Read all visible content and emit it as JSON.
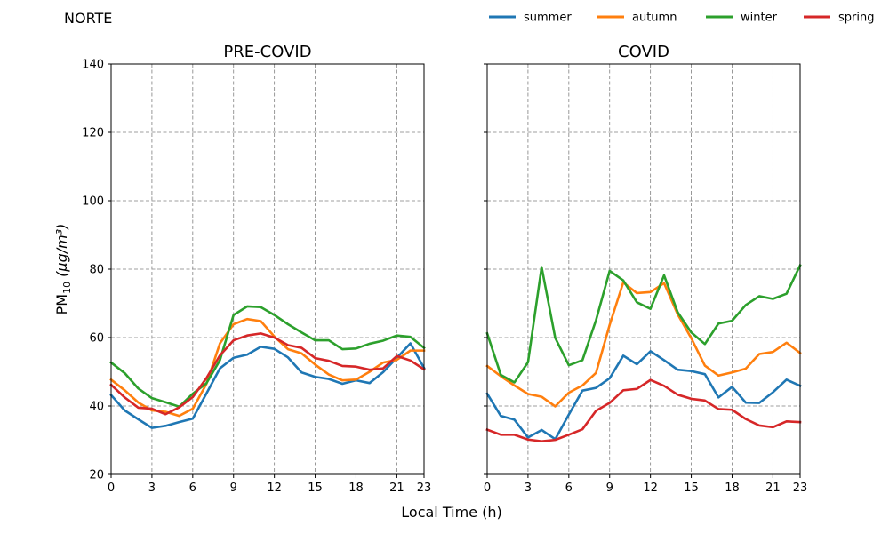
{
  "chart_data": {
    "type": "line",
    "region": "NORTE",
    "ylabel": "PM",
    "ylabel_sub": "10",
    "ylabel_unit": "(μg/m³)",
    "xlabel": "Local Time (h)",
    "ylim": [
      20,
      140
    ],
    "xlim": [
      0,
      23
    ],
    "xticks": [
      0,
      3,
      6,
      9,
      12,
      15,
      18,
      21,
      23
    ],
    "yticks": [
      20,
      40,
      60,
      80,
      100,
      120,
      140
    ],
    "grid": true,
    "legend_position": "top-right",
    "colors": {
      "summer": "#1f77b4",
      "autumn": "#ff7f0e",
      "winter": "#2ca02c",
      "spring": "#d62728"
    },
    "legend": [
      "summer",
      "autumn",
      "winter",
      "spring"
    ],
    "x": [
      0,
      1,
      2,
      3,
      4,
      5,
      6,
      7,
      8,
      9,
      10,
      11,
      12,
      13,
      14,
      15,
      16,
      17,
      18,
      19,
      20,
      21,
      22,
      23
    ],
    "panels": [
      {
        "title": "PRE-COVID",
        "series": [
          {
            "name": "summer",
            "values": [
              43.2,
              38.7,
              36.1,
              33.6,
              34.2,
              35.3,
              36.3,
              43.6,
              51.0,
              54.1,
              55.0,
              57.3,
              56.7,
              54.2,
              49.8,
              48.5,
              47.9,
              46.5,
              47.5,
              46.7,
              49.9,
              54.1,
              58.3,
              51.1
            ]
          },
          {
            "name": "autumn",
            "values": [
              47.7,
              44.6,
              41.0,
              38.7,
              38.3,
              37.1,
              39.2,
              46.4,
              58.3,
              63.9,
              65.4,
              64.8,
              60.3,
              56.6,
              55.4,
              52.1,
              49.2,
              47.5,
              47.7,
              50.0,
              52.7,
              53.5,
              56.2,
              56.2
            ]
          },
          {
            "name": "winter",
            "values": [
              52.7,
              49.6,
              45.1,
              42.3,
              41.1,
              39.8,
              43.6,
              46.6,
              53.4,
              66.6,
              69.1,
              68.9,
              66.6,
              63.9,
              61.5,
              59.2,
              59.2,
              56.6,
              56.8,
              58.2,
              59.1,
              60.6,
              60.2,
              57.0
            ]
          },
          {
            "name": "spring",
            "values": [
              46.2,
              42.5,
              39.5,
              39.2,
              37.6,
              39.6,
              42.6,
              48.1,
              54.8,
              59.2,
              60.6,
              61.2,
              60.0,
              57.8,
              57.0,
              54.0,
              53.2,
              51.7,
              51.5,
              50.6,
              51.0,
              54.6,
              53.3,
              50.7
            ]
          }
        ]
      },
      {
        "title": "COVID",
        "series": [
          {
            "name": "summer",
            "values": [
              43.6,
              37.1,
              36.0,
              30.8,
              33.0,
              30.3,
              37.5,
              44.5,
              45.3,
              48.1,
              54.7,
              52.2,
              56.0,
              53.4,
              50.6,
              50.2,
              49.3,
              42.5,
              45.6,
              41.0,
              40.9,
              44.0,
              47.7,
              45.9
            ]
          },
          {
            "name": "autumn",
            "values": [
              51.7,
              48.7,
              46.0,
              43.5,
              42.7,
              39.9,
              43.9,
              46.0,
              49.7,
              63.7,
              76.1,
              73.0,
              73.3,
              75.9,
              66.8,
              59.8,
              51.8,
              48.9,
              49.8,
              50.9,
              55.2,
              55.8,
              58.5,
              55.5
            ]
          },
          {
            "name": "winter",
            "values": [
              61.2,
              49.1,
              46.9,
              52.8,
              80.6,
              59.9,
              51.9,
              53.4,
              65.1,
              79.5,
              76.7,
              70.3,
              68.4,
              78.2,
              67.4,
              61.5,
              58.1,
              64.1,
              64.9,
              69.5,
              72.1,
              71.3,
              72.8,
              81.1
            ]
          },
          {
            "name": "spring",
            "values": [
              33.1,
              31.6,
              31.6,
              30.2,
              29.7,
              30.1,
              31.6,
              33.2,
              38.6,
              40.9,
              44.6,
              45.0,
              47.6,
              45.9,
              43.3,
              42.1,
              41.6,
              39.1,
              38.9,
              36.2,
              34.3,
              33.8,
              35.5,
              35.3
            ]
          }
        ]
      }
    ]
  }
}
